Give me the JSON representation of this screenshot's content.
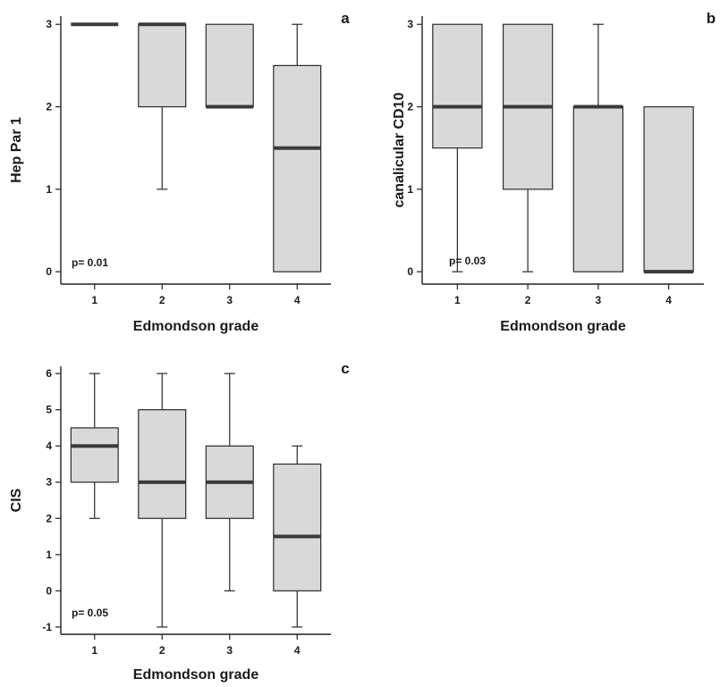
{
  "figure": {
    "colors": {
      "box_fill": "#d9d9d9",
      "box_stroke": "#2a2a2a",
      "median": "#3a3a3a",
      "axis": "#222222"
    }
  },
  "chart_data": [
    {
      "panel": "a",
      "type": "box",
      "xlabel": "Edmondson grade",
      "ylabel": "Hep Par 1",
      "annotation": "p= 0.01",
      "categories": [
        "1",
        "2",
        "3",
        "4"
      ],
      "ylim": [
        -0.15,
        3.1
      ],
      "yticks": [
        0,
        1,
        2,
        3
      ],
      "boxes": [
        {
          "min": 3,
          "q1": 3,
          "median": 3,
          "q3": 3,
          "max": 3
        },
        {
          "min": 1,
          "q1": 2,
          "median": 3,
          "q3": 3,
          "max": 3
        },
        {
          "min": 2,
          "q1": 2,
          "median": 2,
          "q3": 3,
          "max": 3
        },
        {
          "min": 0,
          "q1": 0,
          "median": 1.5,
          "q3": 2.5,
          "max": 3
        }
      ]
    },
    {
      "panel": "b",
      "type": "box",
      "xlabel": "Edmondson grade",
      "ylabel": "canalicular CD10",
      "annotation": "p= 0.03",
      "categories": [
        "1",
        "2",
        "3",
        "4"
      ],
      "ylim": [
        -0.15,
        3.1
      ],
      "yticks": [
        0,
        1,
        2,
        3
      ],
      "boxes": [
        {
          "min": 0,
          "q1": 1.5,
          "median": 2,
          "q3": 3,
          "max": 3
        },
        {
          "min": 0,
          "q1": 1,
          "median": 2,
          "q3": 3,
          "max": 3
        },
        {
          "min": 0,
          "q1": 0,
          "median": 2,
          "q3": 2,
          "max": 3
        },
        {
          "min": 0,
          "q1": 0,
          "median": 0,
          "q3": 2,
          "max": 2
        }
      ]
    },
    {
      "panel": "c",
      "type": "box",
      "xlabel": "Edmondson grade",
      "ylabel": "CIS",
      "annotation": "p= 0.05",
      "categories": [
        "1",
        "2",
        "3",
        "4"
      ],
      "ylim": [
        -1.2,
        6.2
      ],
      "yticks": [
        -1,
        0,
        1,
        2,
        3,
        4,
        5,
        6
      ],
      "boxes": [
        {
          "min": 2,
          "q1": 3,
          "median": 4,
          "q3": 4.5,
          "max": 6
        },
        {
          "min": -1,
          "q1": 2,
          "median": 3,
          "q3": 5,
          "max": 6
        },
        {
          "min": 0,
          "q1": 2,
          "median": 3,
          "q3": 4,
          "max": 6
        },
        {
          "min": -1,
          "q1": 0,
          "median": 1.5,
          "q3": 3.5,
          "max": 4
        }
      ]
    }
  ]
}
